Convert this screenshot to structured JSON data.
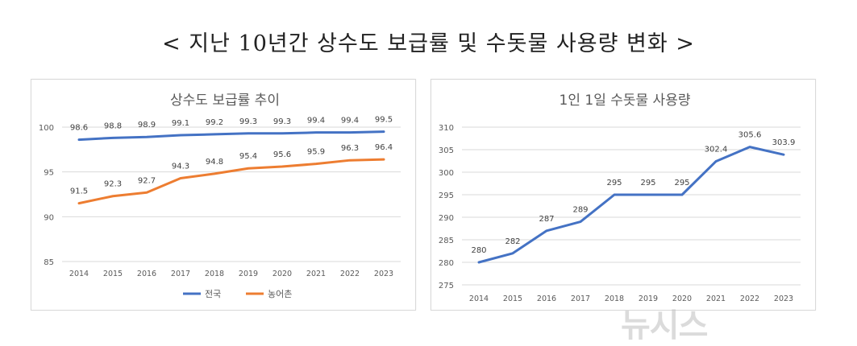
{
  "page": {
    "title": "< 지난 10년간 상수도 보급률 및 수돗물 사용량 변화 >",
    "watermark": "뉴시스"
  },
  "colors": {
    "blue": "#4472c4",
    "orange": "#ed7d31",
    "grid": "#d9d9d9",
    "text": "#595959"
  },
  "chart_data": [
    {
      "type": "line",
      "title": "상수도 보급률 추이",
      "categories": [
        "2014",
        "2015",
        "2016",
        "2017",
        "2018",
        "2019",
        "2020",
        "2021",
        "2022",
        "2023"
      ],
      "series": [
        {
          "name": "전국",
          "color": "#4472c4",
          "values": [
            98.6,
            98.8,
            98.9,
            99.1,
            99.2,
            99.3,
            99.3,
            99.4,
            99.4,
            99.5
          ]
        },
        {
          "name": "농어촌",
          "color": "#ed7d31",
          "values": [
            91.5,
            92.3,
            92.7,
            94.3,
            94.8,
            95.4,
            95.6,
            95.9,
            96.3,
            96.4
          ]
        }
      ],
      "ylim": [
        85,
        100
      ],
      "yticks": [
        85,
        90,
        95,
        100
      ],
      "grid": true,
      "legend": "bottom"
    },
    {
      "type": "line",
      "title": "1인 1일 수돗물 사용량",
      "categories": [
        "2014",
        "2015",
        "2016",
        "2017",
        "2018",
        "2019",
        "2020",
        "2021",
        "2022",
        "2023"
      ],
      "series": [
        {
          "color": "#4472c4",
          "values": [
            280,
            282,
            287,
            289,
            295,
            295,
            295,
            302.4,
            305.6,
            303.9
          ]
        }
      ],
      "ylim": [
        275,
        310
      ],
      "yticks": [
        275,
        280,
        285,
        290,
        295,
        300,
        305,
        310
      ],
      "grid": true,
      "legend": "none"
    }
  ]
}
